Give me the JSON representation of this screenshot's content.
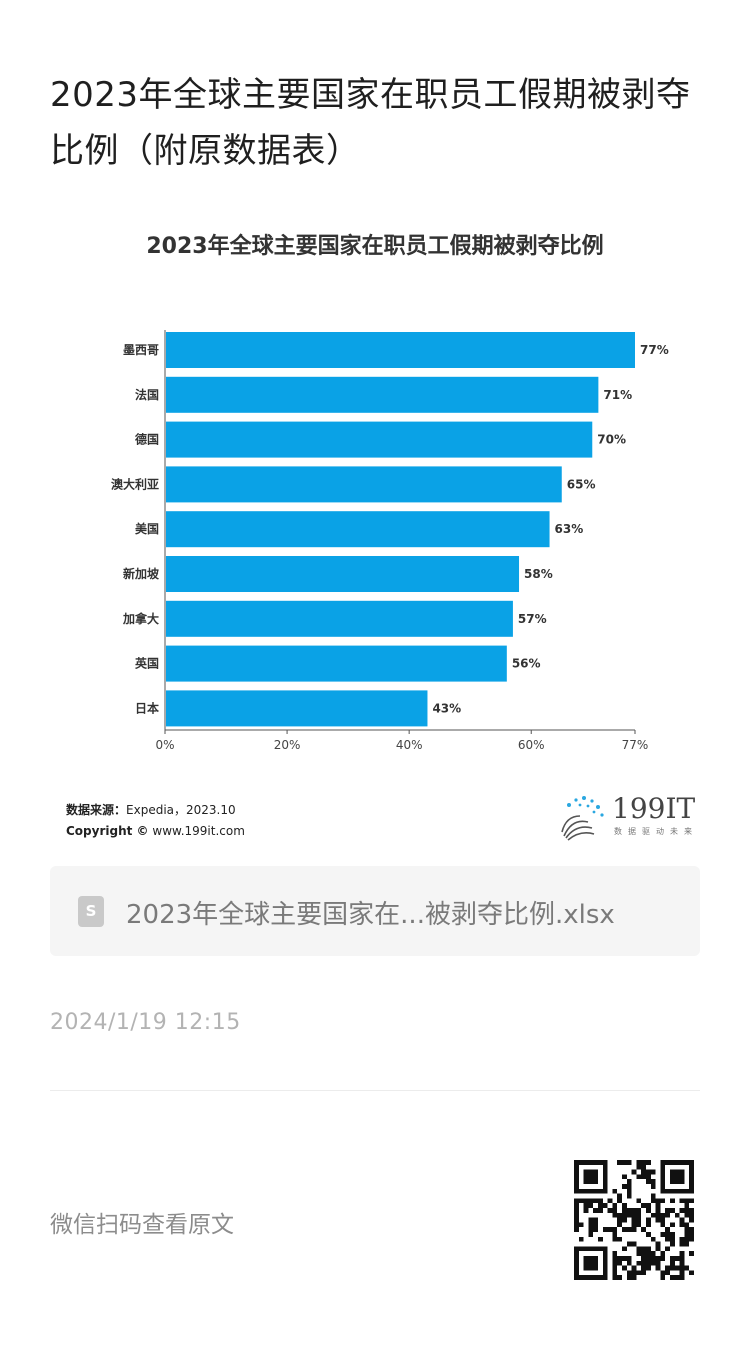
{
  "article": {
    "title": "2023年全球主要国家在职员工假期被剥夺比例（附原数据表）"
  },
  "chart_data": {
    "type": "bar",
    "orientation": "horizontal",
    "title": "2023年全球主要国家在职员工假期被剥夺比例",
    "categories": [
      "墨西哥",
      "法国",
      "德国",
      "澳大利亚",
      "美国",
      "新加坡",
      "加拿大",
      "英国",
      "日本"
    ],
    "values": [
      77,
      71,
      70,
      65,
      63,
      58,
      57,
      56,
      43
    ],
    "value_labels": [
      "77%",
      "71%",
      "70%",
      "65%",
      "63%",
      "58%",
      "57%",
      "56%",
      "43%"
    ],
    "xlim": [
      0,
      77
    ],
    "x_ticks": [
      0,
      20,
      40,
      60,
      77
    ],
    "x_tick_labels": [
      "0%",
      "20%",
      "40%",
      "60%",
      "77%"
    ],
    "bar_color": "#0aa2e6",
    "grid": false,
    "legend": "none"
  },
  "source": {
    "label": "数据来源：",
    "value": "Expedia，2023.10",
    "copyright_label": "Copyright ©",
    "copyright_value": "www.199it.com"
  },
  "logo": {
    "text": "199IT",
    "subtext": "数据驱动未来"
  },
  "attachment": {
    "icon": "spreadsheet-file-icon",
    "icon_letter": "S",
    "filename": "2023年全球主要国家在...被剥夺比例.xlsx"
  },
  "meta": {
    "timestamp": "2024/1/19 12:15",
    "scan_text": "微信扫码查看原文"
  },
  "colors": {
    "accent": "#0aa2e6",
    "logo_dots": "#2aa7e0"
  }
}
